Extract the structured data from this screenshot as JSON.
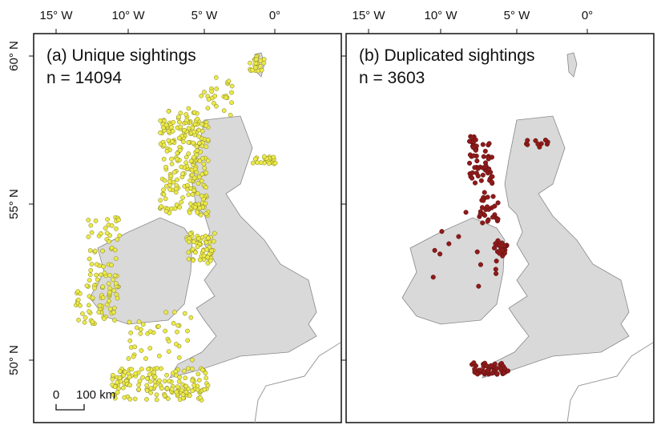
{
  "axes": {
    "x_labels": [
      "15° W",
      "10° W",
      "5° W",
      "0°"
    ],
    "y_labels": [
      "60° N",
      "55° N",
      "50° N"
    ]
  },
  "panels": [
    {
      "title": "(a) Unique sightings",
      "count_label": "n = 14094"
    },
    {
      "title": "(b) Duplicated sightings",
      "count_label": "n = 3603"
    }
  ],
  "scale_bar": {
    "start": "0",
    "end": "100 km"
  }
}
